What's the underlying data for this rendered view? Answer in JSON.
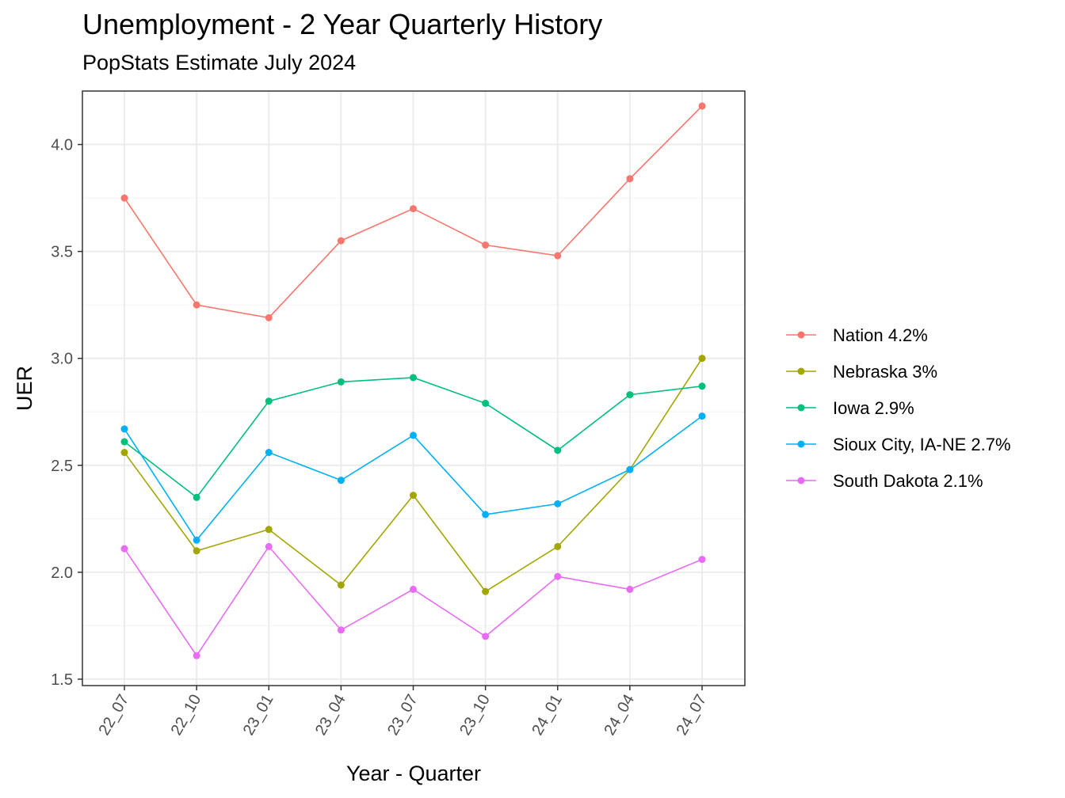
{
  "chart_data": {
    "type": "line",
    "title": "Unemployment - 2 Year Quarterly History",
    "subtitle": "PopStats Estimate July 2024",
    "xlabel": "Year - Quarter",
    "ylabel": "UER",
    "categories": [
      "22_07",
      "22_10",
      "23_01",
      "23_04",
      "23_07",
      "23_10",
      "24_01",
      "24_04",
      "24_07"
    ],
    "ylim": [
      1.47,
      4.25
    ],
    "yticks": [
      1.5,
      2.0,
      2.5,
      3.0,
      3.5,
      4.0
    ],
    "ytick_labels": [
      "1.5",
      "2.0",
      "2.5",
      "3.0",
      "3.5",
      "4.0"
    ],
    "grid": true,
    "legend_position": "right",
    "series": [
      {
        "name": "Nation 4.2%",
        "color": "#F8766D",
        "values": [
          3.75,
          3.25,
          3.19,
          3.55,
          3.7,
          3.53,
          3.48,
          3.84,
          4.18
        ]
      },
      {
        "name": "Nebraska 3%",
        "color": "#A3A500",
        "values": [
          2.56,
          2.1,
          2.2,
          1.94,
          2.36,
          1.91,
          2.12,
          2.48,
          3.0
        ]
      },
      {
        "name": "Iowa 2.9%",
        "color": "#00BF7D",
        "values": [
          2.61,
          2.35,
          2.8,
          2.89,
          2.91,
          2.79,
          2.57,
          2.83,
          2.87
        ]
      },
      {
        "name": "Sioux City, IA-NE 2.7%",
        "color": "#00B0F6",
        "values": [
          2.67,
          2.15,
          2.56,
          2.43,
          2.64,
          2.27,
          2.32,
          2.48,
          2.73
        ]
      },
      {
        "name": "South Dakota 2.1%",
        "color": "#E76BF3",
        "values": [
          2.11,
          1.61,
          2.12,
          1.73,
          1.92,
          1.7,
          1.98,
          1.92,
          2.06
        ]
      }
    ]
  }
}
